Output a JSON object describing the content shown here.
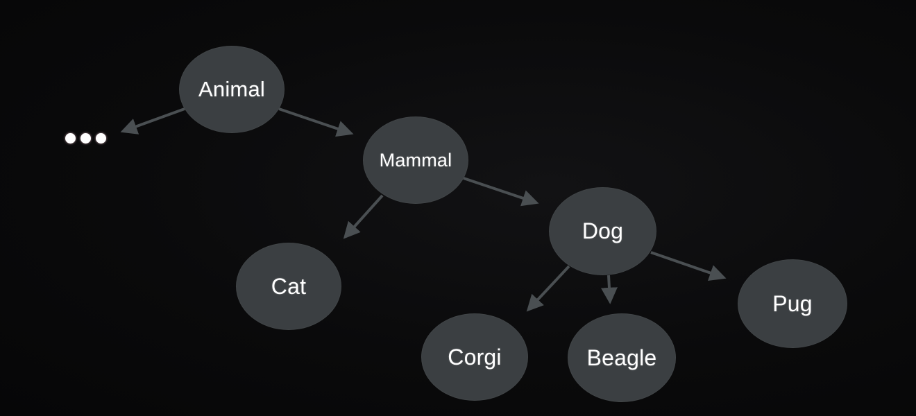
{
  "colors": {
    "background": "#0a0a0b",
    "node_fill": "#3b3f42",
    "node_text": "#ffffff",
    "edge": "#4a4f52"
  },
  "nodes": {
    "animal": "Animal",
    "mammal": "Mammal",
    "dog": "Dog",
    "cat": "Cat",
    "corgi": "Corgi",
    "beagle": "Beagle",
    "pug": "Pug"
  },
  "edges": [
    [
      "animal",
      "ellipsis"
    ],
    [
      "animal",
      "mammal"
    ],
    [
      "mammal",
      "cat"
    ],
    [
      "mammal",
      "dog"
    ],
    [
      "dog",
      "corgi"
    ],
    [
      "dog",
      "beagle"
    ],
    [
      "dog",
      "pug"
    ]
  ],
  "ellipsis": "•••"
}
